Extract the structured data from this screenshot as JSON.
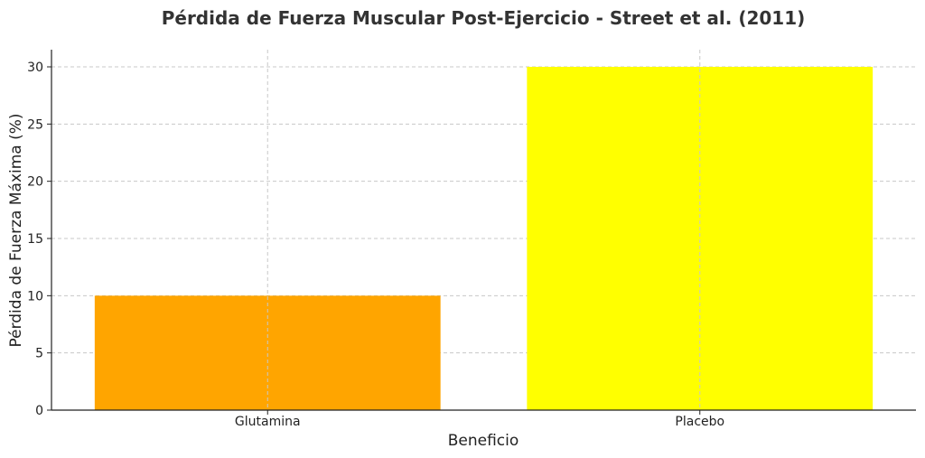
{
  "chart_data": {
    "type": "bar",
    "title": "Pérdida de Fuerza Muscular Post-Ejercicio - Street et al. (2011)",
    "xlabel": "Beneficio",
    "ylabel": "Pérdida de Fuerza Máxima (%)",
    "categories": [
      "Glutamina",
      "Placebo"
    ],
    "values": [
      10,
      30
    ],
    "colors": [
      "#FFA500",
      "#FFFF00"
    ],
    "ylim": [
      0,
      31.5
    ],
    "yticks": [
      0,
      5,
      10,
      15,
      20,
      25,
      30
    ],
    "grid": true,
    "legend": "none"
  }
}
